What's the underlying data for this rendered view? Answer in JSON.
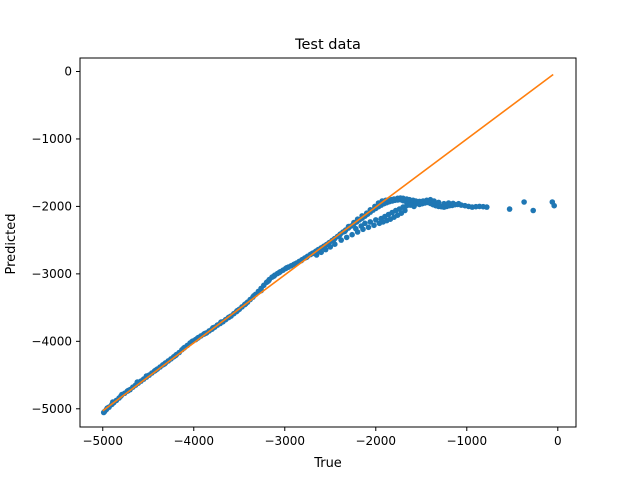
{
  "chart_data": {
    "type": "scatter",
    "title": "Test data",
    "xlabel": "True",
    "ylabel": "Predicted",
    "xlim": [
      -5250,
      200
    ],
    "ylim": [
      -5270,
      200
    ],
    "xticks": [
      -5000,
      -4000,
      -3000,
      -2000,
      -1000,
      0
    ],
    "yticks": [
      0,
      -1000,
      -2000,
      -3000,
      -4000,
      -5000
    ],
    "grid": false,
    "legend": "none",
    "series": [
      {
        "type": "scatter",
        "color": "#1f77b4",
        "points": [
          [
            -4980,
            -5040
          ],
          [
            -4960,
            -5010
          ],
          [
            -4930,
            -4975
          ],
          [
            -4900,
            -4935
          ],
          [
            -4880,
            -4910
          ],
          [
            -4850,
            -4875
          ],
          [
            -4820,
            -4840
          ],
          [
            -4790,
            -4790
          ],
          [
            -4760,
            -4770
          ],
          [
            -4730,
            -4740
          ],
          [
            -4700,
            -4715
          ],
          [
            -4670,
            -4680
          ],
          [
            -4640,
            -4650
          ],
          [
            -4610,
            -4620
          ],
          [
            -4580,
            -4590
          ],
          [
            -4550,
            -4560
          ],
          [
            -4520,
            -4530
          ],
          [
            -4490,
            -4500
          ],
          [
            -4460,
            -4470
          ],
          [
            -4430,
            -4440
          ],
          [
            -4400,
            -4410
          ],
          [
            -4370,
            -4380
          ],
          [
            -4340,
            -4350
          ],
          [
            -4310,
            -4320
          ],
          [
            -4280,
            -4290
          ],
          [
            -4250,
            -4260
          ],
          [
            -4220,
            -4230
          ],
          [
            -4190,
            -4195
          ],
          [
            -4160,
            -4165
          ],
          [
            -4130,
            -4125
          ],
          [
            -4100,
            -4090
          ],
          [
            -4070,
            -4060
          ],
          [
            -4040,
            -4025
          ],
          [
            -4010,
            -3995
          ],
          [
            -3980,
            -3975
          ],
          [
            -3950,
            -3945
          ],
          [
            -3920,
            -3920
          ],
          [
            -3890,
            -3895
          ],
          [
            -3860,
            -3875
          ],
          [
            -3830,
            -3845
          ],
          [
            -3800,
            -3820
          ],
          [
            -3770,
            -3790
          ],
          [
            -3740,
            -3760
          ],
          [
            -3710,
            -3735
          ],
          [
            -3680,
            -3710
          ],
          [
            -3650,
            -3680
          ],
          [
            -3620,
            -3650
          ],
          [
            -3590,
            -3625
          ],
          [
            -3560,
            -3590
          ],
          [
            -3530,
            -3560
          ],
          [
            -3500,
            -3525
          ],
          [
            -3470,
            -3490
          ],
          [
            -3440,
            -3455
          ],
          [
            -3410,
            -3420
          ],
          [
            -3380,
            -3380
          ],
          [
            -3350,
            -3345
          ],
          [
            -3320,
            -3305
          ],
          [
            -3290,
            -3260
          ],
          [
            -3260,
            -3215
          ],
          [
            -3230,
            -3170
          ],
          [
            -3200,
            -3125
          ],
          [
            -3170,
            -3085
          ],
          [
            -3140,
            -3050
          ],
          [
            -3110,
            -3020
          ],
          [
            -3080,
            -2995
          ],
          [
            -3050,
            -2970
          ],
          [
            -3020,
            -2945
          ],
          [
            -2990,
            -2920
          ],
          [
            -2960,
            -2900
          ],
          [
            -2930,
            -2880
          ],
          [
            -2900,
            -2860
          ],
          [
            -2870,
            -2840
          ],
          [
            -2840,
            -2815
          ],
          [
            -2810,
            -2790
          ],
          [
            -2780,
            -2765
          ],
          [
            -2750,
            -2740
          ],
          [
            -2720,
            -2715
          ],
          [
            -2690,
            -2690
          ],
          [
            -2660,
            -2665
          ],
          [
            -2630,
            -2640
          ],
          [
            -2600,
            -2615
          ],
          [
            -2570,
            -2590
          ],
          [
            -2540,
            -2565
          ],
          [
            -2510,
            -2535
          ],
          [
            -2480,
            -2505
          ],
          [
            -2450,
            -2475
          ],
          [
            -2420,
            -2445
          ],
          [
            -2390,
            -2410
          ],
          [
            -2360,
            -2380
          ],
          [
            -2330,
            -2350
          ],
          [
            -2300,
            -2320
          ],
          [
            -2270,
            -2290
          ],
          [
            -2240,
            -2260
          ],
          [
            -2210,
            -2230
          ],
          [
            -2180,
            -2200
          ],
          [
            -2150,
            -2175
          ],
          [
            -2120,
            -2145
          ],
          [
            -2090,
            -2115
          ],
          [
            -2060,
            -2085
          ],
          [
            -2030,
            -2055
          ],
          [
            -2000,
            -2030
          ],
          [
            -1970,
            -2005
          ],
          [
            -1940,
            -1980
          ],
          [
            -1910,
            -1960
          ],
          [
            -1880,
            -1945
          ],
          [
            -1850,
            -1930
          ],
          [
            -1820,
            -1920
          ],
          [
            -1790,
            -1910
          ],
          [
            -1760,
            -1905
          ],
          [
            -1730,
            -1900
          ],
          [
            -1700,
            -1915
          ],
          [
            -1670,
            -1925
          ],
          [
            -1640,
            -1935
          ],
          [
            -1610,
            -1950
          ],
          [
            -1580,
            -1955
          ],
          [
            -1550,
            -1960
          ],
          [
            -1520,
            -1970
          ],
          [
            -1490,
            -1960
          ],
          [
            -1460,
            -1950
          ],
          [
            -1430,
            -1940
          ],
          [
            -1400,
            -1955
          ],
          [
            -1370,
            -1975
          ],
          [
            -1340,
            -1990
          ],
          [
            -1310,
            -2000
          ],
          [
            -1280,
            -2005
          ],
          [
            -1250,
            -2010
          ],
          [
            -1220,
            -2000
          ],
          [
            -1190,
            -1990
          ],
          [
            -1160,
            -1985
          ],
          [
            -1130,
            -1975
          ],
          [
            -1100,
            -1970
          ],
          [
            -1060,
            -1980
          ],
          [
            -1020,
            -1990
          ],
          [
            -980,
            -2000
          ],
          [
            -940,
            -2010
          ],
          [
            -900,
            -2005
          ],
          [
            -860,
            -2000
          ],
          [
            -820,
            -2005
          ],
          [
            -780,
            -2010
          ],
          [
            -530,
            -2040
          ],
          [
            -370,
            -1935
          ],
          [
            -270,
            -2060
          ],
          [
            -60,
            -1935
          ],
          [
            -40,
            -1990
          ],
          [
            -4990,
            -5055
          ],
          [
            -4950,
            -4990
          ],
          [
            -4890,
            -4900
          ],
          [
            -4800,
            -4810
          ],
          [
            -4720,
            -4730
          ],
          [
            -4620,
            -4605
          ],
          [
            -4520,
            -4515
          ],
          [
            -4420,
            -4430
          ],
          [
            -4320,
            -4335
          ],
          [
            -4200,
            -4210
          ],
          [
            -4110,
            -4100
          ],
          [
            -4020,
            -4005
          ],
          [
            -3960,
            -3955
          ],
          [
            -3880,
            -3885
          ],
          [
            -3790,
            -3800
          ],
          [
            -3700,
            -3715
          ],
          [
            -3610,
            -3640
          ],
          [
            -3520,
            -3545
          ],
          [
            -3430,
            -3445
          ],
          [
            -3340,
            -3325
          ],
          [
            -3260,
            -3250
          ],
          [
            -3180,
            -3105
          ],
          [
            -3120,
            -3035
          ],
          [
            -3060,
            -2980
          ],
          [
            -2980,
            -2910
          ],
          [
            -2890,
            -2855
          ],
          [
            -2820,
            -2805
          ],
          [
            -2760,
            -2755
          ],
          [
            -2700,
            -2700
          ],
          [
            -2640,
            -2650
          ],
          [
            -2580,
            -2605
          ],
          [
            -2520,
            -2550
          ],
          [
            -2460,
            -2490
          ],
          [
            -2400,
            -2430
          ],
          [
            -2340,
            -2370
          ],
          [
            -2300,
            -2300
          ],
          [
            -2240,
            -2240
          ],
          [
            -2200,
            -2190
          ],
          [
            -2150,
            -2140
          ],
          [
            -2100,
            -2100
          ],
          [
            -2060,
            -2050
          ],
          [
            -2010,
            -2000
          ],
          [
            -1970,
            -1950
          ],
          [
            -1930,
            -1920
          ],
          [
            -1890,
            -1910
          ],
          [
            -1860,
            -1905
          ],
          [
            -1830,
            -1900
          ],
          [
            -1800,
            -1890
          ],
          [
            -1760,
            -1880
          ],
          [
            -1730,
            -1875
          ],
          [
            -1700,
            -1880
          ],
          [
            -1660,
            -1890
          ],
          [
            -1630,
            -1900
          ],
          [
            -1590,
            -1910
          ],
          [
            -1560,
            -1920
          ],
          [
            -1520,
            -1925
          ],
          [
            -1480,
            -1920
          ],
          [
            -1440,
            -1910
          ],
          [
            -1400,
            -1900
          ],
          [
            -1360,
            -1920
          ],
          [
            -1310,
            -1940
          ],
          [
            -1250,
            -1960
          ],
          [
            -1200,
            -1950
          ],
          [
            -1150,
            -1955
          ],
          [
            -1090,
            -1960
          ],
          [
            -2650,
            -2720
          ],
          [
            -2600,
            -2680
          ],
          [
            -2550,
            -2640
          ],
          [
            -2500,
            -2600
          ],
          [
            -2450,
            -2560
          ],
          [
            -2380,
            -2500
          ],
          [
            -2320,
            -2460
          ],
          [
            -2260,
            -2420
          ],
          [
            -2200,
            -2380
          ],
          [
            -2140,
            -2340
          ],
          [
            -2080,
            -2310
          ],
          [
            -2020,
            -2280
          ],
          [
            -1960,
            -2250
          ],
          [
            -1920,
            -2230
          ],
          [
            -1880,
            -2210
          ],
          [
            -1840,
            -2190
          ],
          [
            -1800,
            -2160
          ],
          [
            -1760,
            -2130
          ],
          [
            -1720,
            -2100
          ],
          [
            -1680,
            -2060
          ],
          [
            -2220,
            -2330
          ],
          [
            -2160,
            -2290
          ],
          [
            -2120,
            -2250
          ],
          [
            -2060,
            -2230
          ],
          [
            -2000,
            -2200
          ],
          [
            -1940,
            -2180
          ],
          [
            -1900,
            -2150
          ],
          [
            -1860,
            -2120
          ],
          [
            -1820,
            -2090
          ],
          [
            -1780,
            -2060
          ],
          [
            -1740,
            -2040
          ],
          [
            -1700,
            -2010
          ],
          [
            -1660,
            -1990
          ],
          [
            -1620,
            -1980
          ],
          [
            -1580,
            -2000
          ]
        ]
      },
      {
        "type": "line",
        "color": "#ff7f0e",
        "points": [
          [
            -5000,
            -5030
          ],
          [
            -50,
            -45
          ]
        ]
      }
    ]
  }
}
